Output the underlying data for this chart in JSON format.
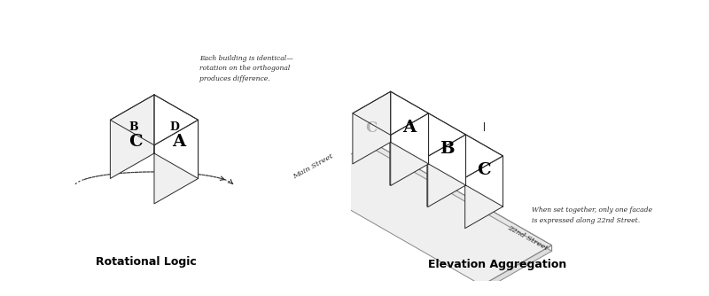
{
  "bg_color": "#ffffff",
  "line_color": "#2a2a2a",
  "title_left": "Rotational Logic",
  "title_right": "Elevation Aggregation",
  "annotation_left": "Each building is identical—\nrotation on the orthogonal\nproduces difference.",
  "annotation_right": "When set together, only one facade\nis expressed along 22nd Street.",
  "label_main_street": "Main Street",
  "label_22nd_street": "22nd Street",
  "font_size_title": 9,
  "font_size_label": 6,
  "font_size_annotation": 5.5,
  "font_size_face_big": 14,
  "font_size_face_small": 9
}
